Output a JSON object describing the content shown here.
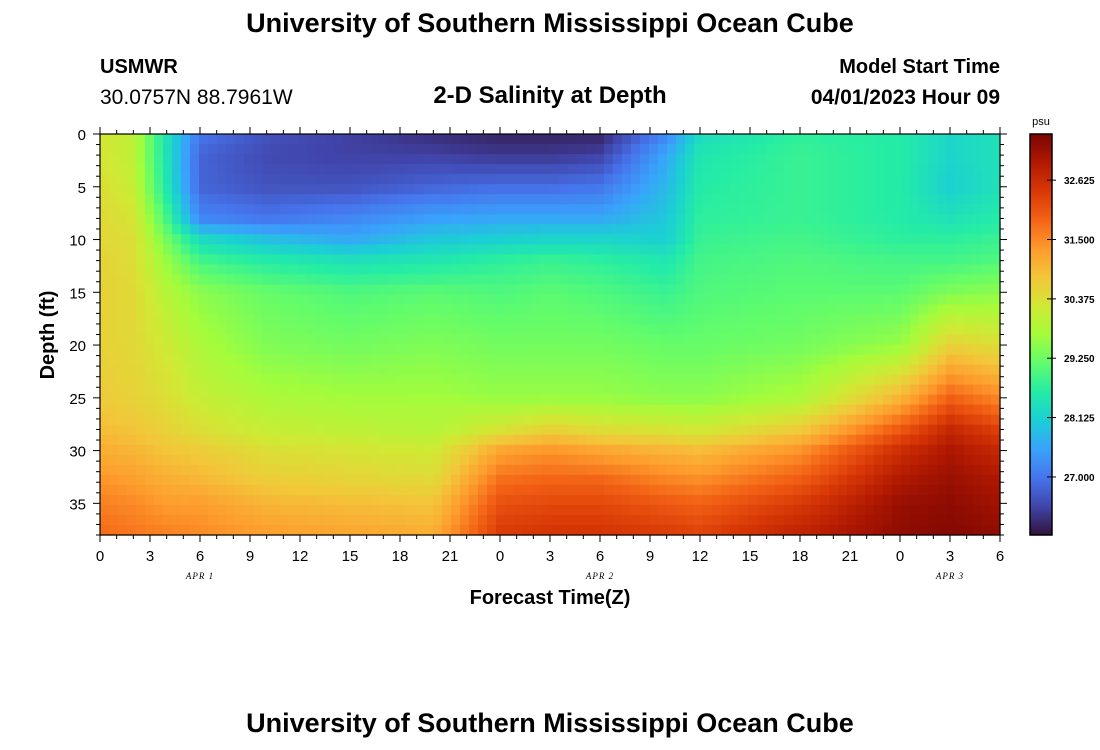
{
  "header": {
    "title": "University of Southern Mississippi Ocean Cube",
    "station": "USMWR",
    "coords": "30.0757N  88.7961W",
    "subtitle": "2-D Salinity at Depth",
    "model_start_label": "Model Start Time",
    "model_start_value": "04/01/2023 Hour 09"
  },
  "footer": {
    "title_repeat": "University of Southern Mississippi Ocean Cube"
  },
  "chart_data": {
    "type": "heatmap",
    "title": "2-D Salinity at Depth",
    "xlabel": "Forecast Time(Z)",
    "ylabel": "Depth (ft)",
    "x_tick_labels": [
      "0",
      "3",
      "6",
      "9",
      "12",
      "15",
      "18",
      "21",
      "0",
      "3",
      "6",
      "9",
      "12",
      "15",
      "18",
      "21",
      "0",
      "3",
      "6"
    ],
    "x_date_labels": [
      {
        "label": "APR 1",
        "at_hour": 6
      },
      {
        "label": "APR 2",
        "at_hour": 30
      },
      {
        "label": "APR 3",
        "at_hour": 51
      }
    ],
    "x_range_hours": [
      0,
      54
    ],
    "y_tick_labels": [
      "0",
      "5",
      "10",
      "15",
      "20",
      "25",
      "30",
      "35"
    ],
    "y_ticks": [
      0,
      5,
      10,
      15,
      20,
      25,
      30,
      35
    ],
    "ylim": [
      0,
      38
    ],
    "y_inverted": true,
    "colorbar": {
      "unit": "psu",
      "range": [
        25.9,
        33.5
      ],
      "ticks": [
        32.625,
        31.5,
        30.375,
        29.25,
        28.125,
        27.0
      ],
      "tick_labels": [
        "32.625",
        "31.500",
        "30.375",
        "29.250",
        "28.125",
        "27.000"
      ],
      "colors": [
        "#30123b",
        "#4145ab",
        "#4675ed",
        "#39a2fc",
        "#1bcfd4",
        "#24eca6",
        "#61fc6c",
        "#a4fc3b",
        "#d1e834",
        "#f3c63a",
        "#fe9b2d",
        "#f36315",
        "#d93806",
        "#b11901",
        "#7a0403"
      ]
    },
    "depth_knots": [
      0,
      2,
      5,
      8,
      10,
      12,
      15,
      20,
      25,
      28,
      30,
      33,
      35,
      38
    ],
    "time_profiles": [
      {
        "hour": 0,
        "values": [
          30.3,
          30.3,
          30.4,
          30.5,
          30.5,
          30.6,
          30.6,
          30.6,
          30.7,
          30.9,
          31.1,
          31.4,
          31.6,
          31.8
        ]
      },
      {
        "hour": 2,
        "values": [
          30.0,
          30.0,
          30.1,
          30.3,
          30.4,
          30.4,
          30.5,
          30.5,
          30.6,
          30.8,
          31.0,
          31.3,
          31.5,
          31.7
        ]
      },
      {
        "hour": 4,
        "values": [
          28.4,
          28.4,
          28.5,
          28.9,
          29.3,
          29.6,
          29.9,
          30.2,
          30.4,
          30.6,
          30.8,
          31.1,
          31.3,
          31.6
        ]
      },
      {
        "hour": 6,
        "values": [
          27.0,
          26.8,
          26.8,
          27.2,
          28.3,
          28.9,
          29.5,
          29.8,
          30.1,
          30.4,
          30.7,
          31.0,
          31.3,
          31.5
        ]
      },
      {
        "hour": 10,
        "values": [
          26.6,
          26.5,
          26.6,
          27.0,
          27.9,
          28.6,
          29.2,
          29.4,
          29.8,
          30.1,
          30.4,
          30.7,
          31.0,
          31.3
        ]
      },
      {
        "hour": 15,
        "values": [
          26.4,
          26.4,
          26.6,
          27.2,
          27.6,
          28.4,
          29.0,
          29.3,
          29.7,
          30.0,
          30.3,
          30.6,
          30.9,
          31.2
        ]
      },
      {
        "hour": 20,
        "values": [
          26.2,
          26.4,
          26.8,
          27.5,
          28.0,
          28.5,
          29.1,
          29.4,
          29.7,
          29.9,
          30.2,
          30.5,
          30.8,
          31.1
        ]
      },
      {
        "hour": 24,
        "values": [
          26.1,
          26.3,
          26.9,
          27.6,
          28.1,
          28.7,
          29.0,
          29.3,
          29.6,
          30.3,
          31.2,
          31.8,
          32.1,
          32.4
        ]
      },
      {
        "hour": 27,
        "values": [
          26.1,
          26.3,
          26.9,
          27.6,
          28.2,
          28.8,
          29.1,
          29.3,
          29.6,
          30.6,
          31.4,
          31.9,
          32.2,
          32.5
        ]
      },
      {
        "hour": 30,
        "values": [
          26.1,
          26.4,
          27.0,
          27.6,
          28.2,
          28.7,
          29.0,
          29.3,
          29.6,
          30.4,
          31.2,
          31.9,
          32.2,
          32.5
        ]
      },
      {
        "hour": 34,
        "values": [
          27.2,
          27.6,
          27.8,
          28.0,
          28.1,
          28.5,
          28.8,
          29.2,
          29.5,
          30.3,
          31.0,
          31.6,
          32.0,
          32.4
        ]
      },
      {
        "hour": 36,
        "values": [
          28.3,
          28.5,
          28.6,
          28.7,
          28.8,
          28.9,
          29.0,
          29.2,
          29.5,
          30.2,
          30.9,
          31.5,
          31.9,
          32.3
        ]
      },
      {
        "hour": 42,
        "values": [
          28.7,
          28.8,
          28.8,
          28.8,
          28.9,
          29.0,
          29.1,
          29.3,
          29.8,
          30.7,
          31.4,
          32.0,
          32.4,
          32.8
        ]
      },
      {
        "hour": 48,
        "values": [
          28.6,
          28.6,
          28.6,
          28.6,
          28.7,
          28.9,
          29.1,
          29.6,
          31.0,
          32.0,
          32.6,
          33.0,
          33.2,
          33.3
        ]
      },
      {
        "hour": 51,
        "values": [
          28.2,
          28.2,
          28.1,
          28.4,
          28.7,
          28.9,
          29.4,
          30.6,
          31.9,
          32.7,
          33.0,
          33.2,
          33.3,
          33.4
        ]
      },
      {
        "hour": 54,
        "values": [
          28.4,
          28.4,
          28.4,
          28.6,
          28.8,
          29.0,
          29.5,
          30.4,
          31.5,
          32.3,
          32.7,
          33.0,
          33.1,
          33.3
        ]
      }
    ]
  }
}
